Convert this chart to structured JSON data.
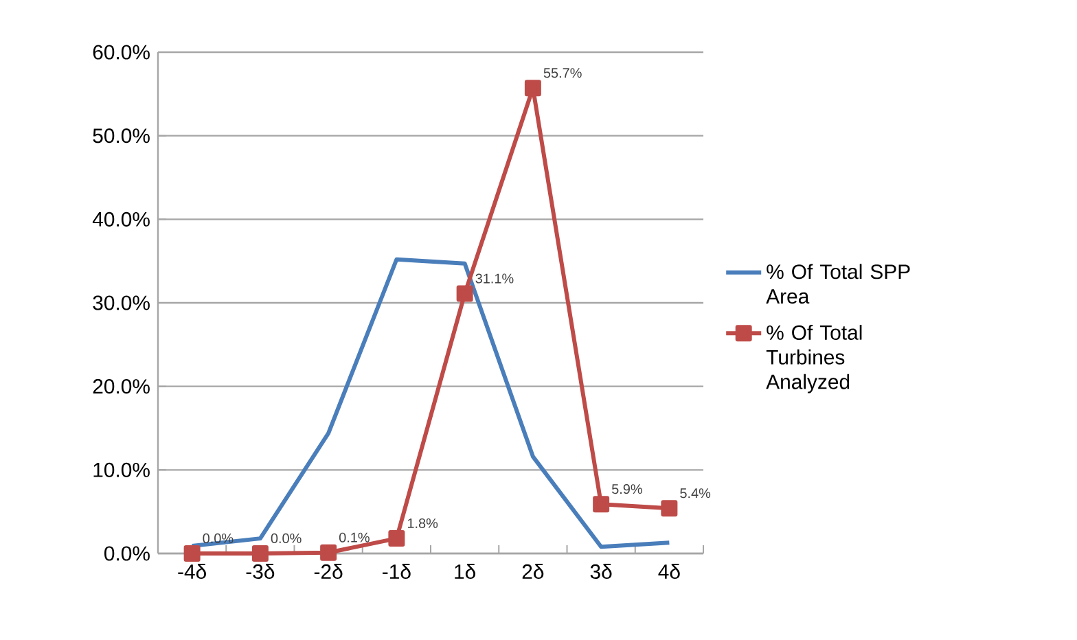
{
  "chart_data": {
    "type": "line",
    "categories": [
      "-4δ",
      "-3δ",
      "-2δ",
      "-1δ",
      "1δ",
      "2δ",
      "3δ",
      "4δ"
    ],
    "series": [
      {
        "name": "% Of Total SPP Area",
        "color": "#4a7ebb",
        "marker": "none",
        "values": [
          0.9,
          1.8,
          14.4,
          35.2,
          34.7,
          11.6,
          0.8,
          1.3
        ]
      },
      {
        "name": "% Of Total Turbines Analyzed",
        "color": "#be4b48",
        "marker": "square",
        "values": [
          0.0,
          0.0,
          0.1,
          1.8,
          31.1,
          55.7,
          5.9,
          5.4
        ],
        "value_labels": [
          "0.0%",
          "0.0%",
          "0.1%",
          "1.8%",
          "31.1%",
          "55.7%",
          "5.9%",
          "5.4%"
        ]
      }
    ],
    "ylim": [
      0,
      60
    ],
    "yticks": [
      {
        "value": 0,
        "label": "0.0%"
      },
      {
        "value": 10,
        "label": "10.0%"
      },
      {
        "value": 20,
        "label": "20.0%"
      },
      {
        "value": 30,
        "label": "30.0%"
      },
      {
        "value": 40,
        "label": "40.0%"
      },
      {
        "value": 50,
        "label": "50.0%"
      },
      {
        "value": 60,
        "label": "60.0%"
      }
    ],
    "grid": "y",
    "legend": "right",
    "line_style": "solid"
  }
}
